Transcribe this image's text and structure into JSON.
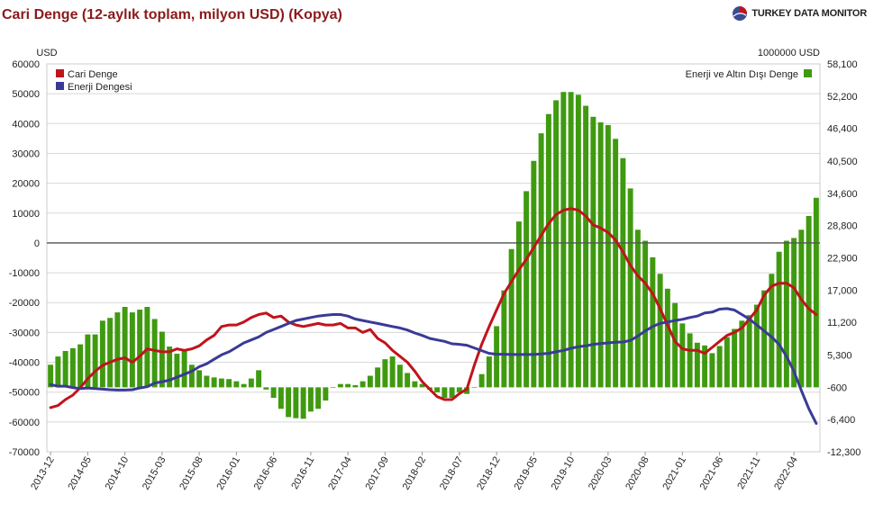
{
  "title": "Cari Denge (12-aylık toplam, milyon USD) (Kopya)",
  "brand": "TURKEY DATA MONITOR",
  "chart_data": {
    "type": "bar",
    "left_axis": {
      "unit": "USD",
      "min": -70000,
      "max": 60000,
      "ticks": [
        60000,
        50000,
        40000,
        30000,
        20000,
        10000,
        0,
        -10000,
        -20000,
        -30000,
        -40000,
        -50000,
        -60000,
        -70000
      ]
    },
    "right_axis": {
      "unit": "1000000 USD",
      "min": -12300,
      "max": 58100,
      "ticks": [
        58100,
        52200,
        46400,
        40500,
        34600,
        28800,
        22900,
        17000,
        11200,
        5300,
        -600,
        -6400,
        -12300
      ],
      "tick_labels": [
        "58,100",
        "52,200",
        "46,400",
        "40,500",
        "34,600",
        "28,800",
        "22,900",
        "17,000",
        "11,200",
        "5,300",
        "-600",
        "-6,400",
        "-12,300"
      ]
    },
    "x_labels": [
      "2013-12",
      "2014-05",
      "2014-10",
      "2015-03",
      "2015-08",
      "2016-01",
      "2016-06",
      "2016-11",
      "2017-04",
      "2017-09",
      "2018-02",
      "2018-07",
      "2018-12",
      "2019-05",
      "2019-10",
      "2020-03",
      "2020-08",
      "2021-01",
      "2021-06",
      "2021-11",
      "2022-04"
    ],
    "legend": {
      "left": [
        {
          "name": "Cari Denge",
          "color": "#c0141c"
        },
        {
          "name": "Enerji Dengesi",
          "color": "#3a3a96"
        }
      ],
      "right": [
        {
          "name": "Enerji ve Altın Dışı Denge",
          "color": "#3f9a10"
        }
      ]
    },
    "series": [
      {
        "name": "Enerji ve Altın Dışı Denge",
        "type": "bar",
        "axis": "right",
        "color": "#3f9a10",
        "values": [
          3500,
          5000,
          6000,
          6500,
          7200,
          9000,
          9000,
          11500,
          12000,
          13000,
          14000,
          13000,
          13500,
          14000,
          11800,
          9500,
          6800,
          5500,
          6000,
          3500,
          2500,
          1500,
          1200,
          1000,
          900,
          500,
          0,
          1000,
          2500,
          -1000,
          -2500,
          -4500,
          -6000,
          -6200,
          -6300,
          -5000,
          -4500,
          -3000,
          -600,
          0,
          0,
          -200,
          500,
          1500,
          3000,
          4500,
          5000,
          3500,
          2000,
          500,
          0,
          -1000,
          -1500,
          -2500,
          -2500,
          -1500,
          -1800,
          -600,
          1800,
          5000,
          10500,
          17000,
          24500,
          29500,
          35000,
          40500,
          45500,
          49000,
          51500,
          53000,
          53000,
          52500,
          50500,
          48500,
          47500,
          47000,
          44500,
          41000,
          35500,
          28000,
          26000,
          23000,
          20000,
          17300,
          14700,
          11000,
          9200,
          7500,
          7000,
          5600,
          6900,
          8500,
          10000,
          11500,
          12500,
          14400,
          17000,
          20000,
          24000,
          26000,
          26500,
          28000,
          30500,
          33800
        ]
      },
      {
        "name": "Cari Denge",
        "type": "line",
        "axis": "left",
        "color": "#c0141c",
        "values": [
          -55200,
          -54500,
          -52500,
          -51000,
          -48500,
          -45500,
          -43000,
          -41000,
          -40000,
          -39000,
          -38500,
          -40000,
          -38000,
          -35500,
          -36000,
          -36500,
          -36500,
          -35500,
          -36000,
          -35500,
          -34500,
          -32500,
          -31000,
          -28000,
          -27500,
          -27500,
          -26500,
          -25000,
          -24000,
          -23500,
          -25000,
          -24500,
          -26500,
          -27500,
          -28000,
          -27500,
          -27000,
          -27500,
          -27500,
          -27000,
          -28500,
          -28500,
          -30000,
          -29000,
          -32000,
          -33500,
          -36000,
          -38000,
          -40000,
          -43000,
          -46500,
          -49000,
          -51500,
          -52500,
          -52500,
          -50500,
          -49000,
          -41000,
          -34000,
          -28000,
          -22500,
          -17000,
          -13000,
          -9000,
          -5500,
          -1500,
          2500,
          6500,
          9500,
          11000,
          11500,
          11000,
          9000,
          6000,
          5000,
          3500,
          1000,
          -3000,
          -7500,
          -11000,
          -13500,
          -17000,
          -22000,
          -27500,
          -33000,
          -35500,
          -36000,
          -36000,
          -37000,
          -35000,
          -33000,
          -31000,
          -30000,
          -28500,
          -25500,
          -22500,
          -17500,
          -14500,
          -13500,
          -13500,
          -15000,
          -19000,
          -22000,
          -24000
        ]
      },
      {
        "name": "Enerji Dengesi",
        "type": "line",
        "axis": "left",
        "color": "#3a3a96",
        "values": [
          -47500,
          -48000,
          -48000,
          -48500,
          -48800,
          -48600,
          -48800,
          -49000,
          -49200,
          -49300,
          -49300,
          -49200,
          -48600,
          -48200,
          -47000,
          -46500,
          -46000,
          -45000,
          -44000,
          -43000,
          -41500,
          -40500,
          -39000,
          -37500,
          -36500,
          -35000,
          -33500,
          -32500,
          -31500,
          -30000,
          -29000,
          -28000,
          -27000,
          -26000,
          -25500,
          -25000,
          -24500,
          -24200,
          -24000,
          -24000,
          -24500,
          -25500,
          -26000,
          -26500,
          -27000,
          -27500,
          -28000,
          -28500,
          -29200,
          -30200,
          -31000,
          -32000,
          -32500,
          -33000,
          -33800,
          -34000,
          -34300,
          -35200,
          -36100,
          -37000,
          -37300,
          -37300,
          -37400,
          -37400,
          -37400,
          -37400,
          -37200,
          -37000,
          -36500,
          -36000,
          -35300,
          -34800,
          -34500,
          -34000,
          -33700,
          -33500,
          -33300,
          -33200,
          -32700,
          -31200,
          -29500,
          -28000,
          -27000,
          -26500,
          -26000,
          -25600,
          -25000,
          -24500,
          -23500,
          -23200,
          -22200,
          -22000,
          -22500,
          -24000,
          -25500,
          -27500,
          -29500,
          -31500,
          -34000,
          -38000,
          -43000,
          -49500,
          -55500,
          -60500
        ]
      }
    ]
  }
}
